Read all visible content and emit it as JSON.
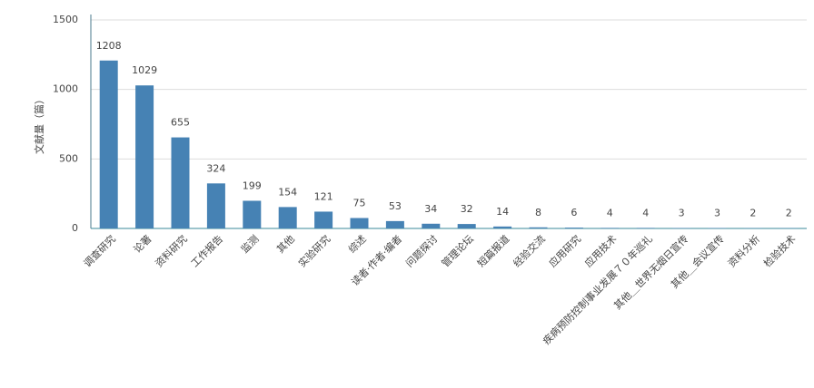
{
  "chart_data": {
    "type": "bar",
    "y_label": "文献量（篇）",
    "categories": [
      "调查研究",
      "论著",
      "资料研究",
      "工作报告",
      "监测",
      "其他",
      "实验研究",
      "综述",
      "读者·作者·编者",
      "问题探讨",
      "管理论坛",
      "短篇报道",
      "经验交流",
      "应用研究",
      "应用技术",
      "疾病预防控制事业发展７０年巡礼",
      "其他＿世界无烟日宣传",
      "其他＿会议宣传",
      "资料分析",
      "检验技术"
    ],
    "values": [
      1208,
      1029,
      655,
      324,
      199,
      154,
      121,
      75,
      53,
      34,
      32,
      14,
      8,
      6,
      4,
      4,
      3,
      3,
      2,
      2
    ],
    "color": "#4682b4",
    "ylim": [
      0,
      1500
    ],
    "yticks": [
      0,
      500,
      1000,
      1500
    ],
    "grid": true
  }
}
